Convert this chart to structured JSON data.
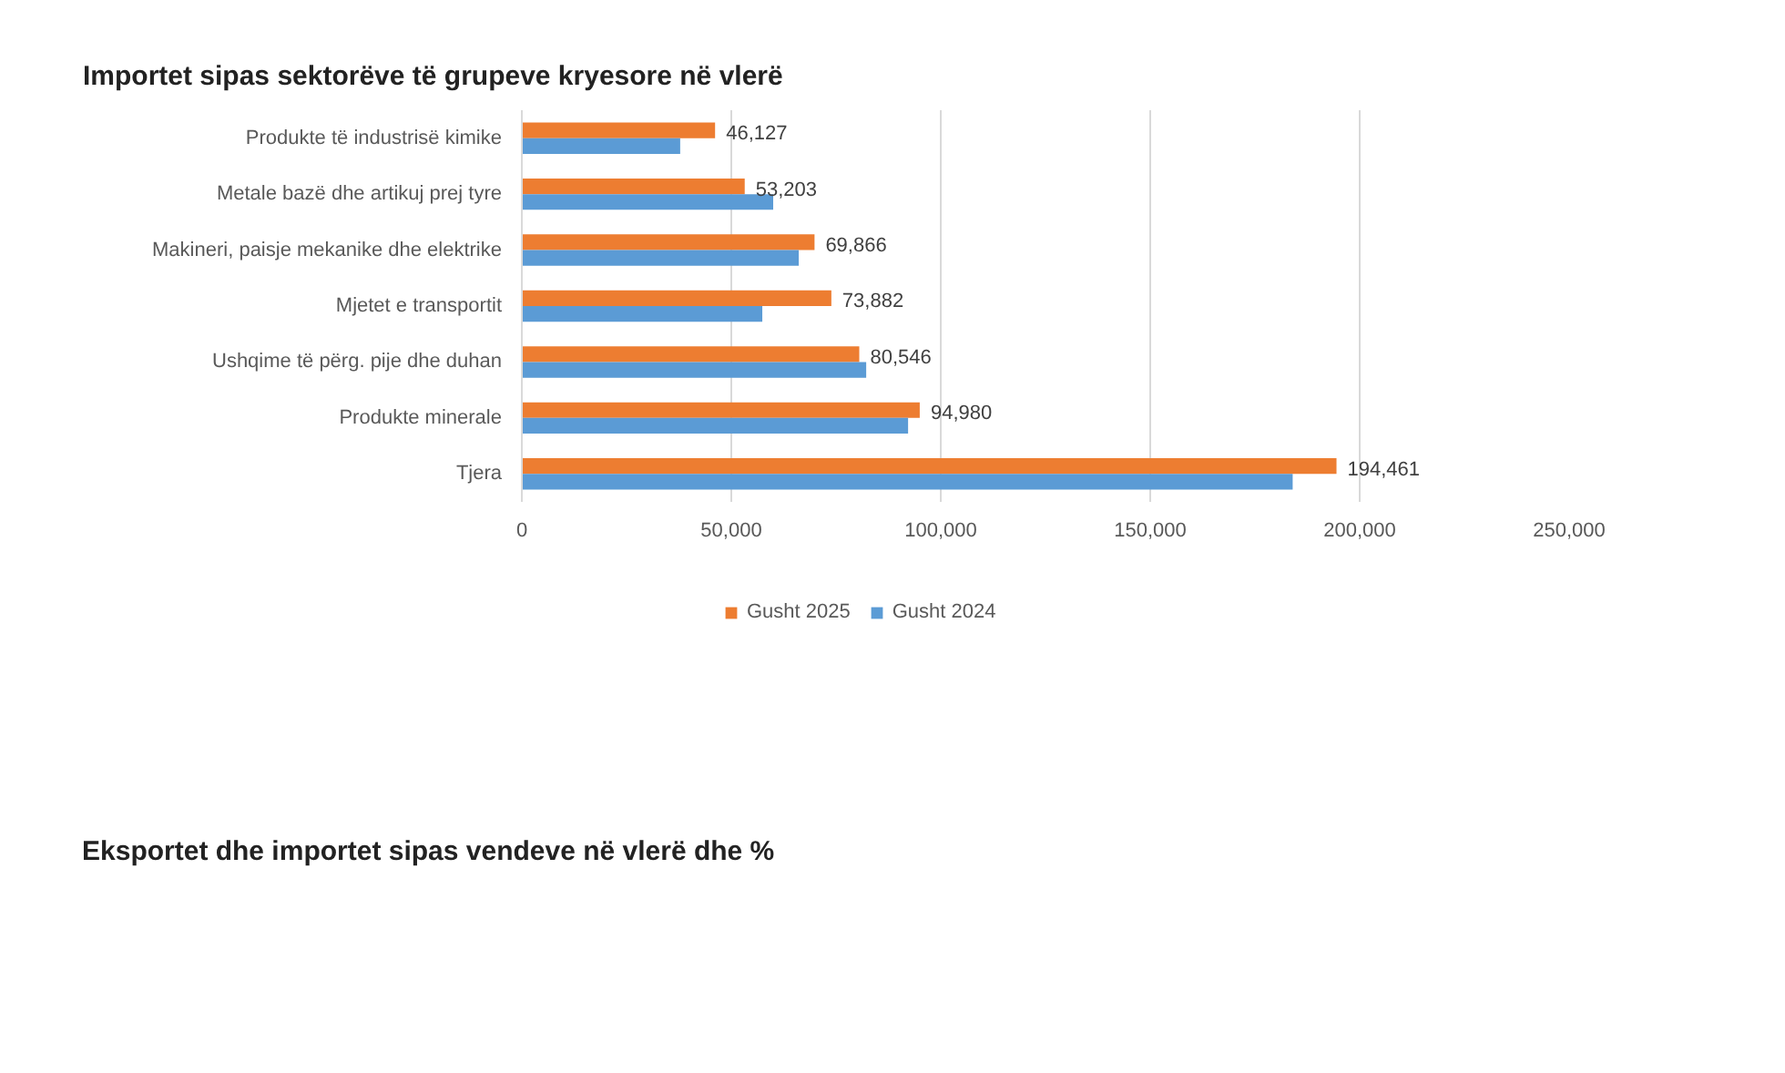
{
  "chart_data": {
    "type": "bar",
    "orientation": "horizontal",
    "title": "Importet sipas sektorëve të grupeve kryesore në vlerë",
    "categories": [
      "Produkte të industrisë kimike",
      "Metale bazë dhe artikuj prej tyre",
      "Makineri, paisje mekanike dhe elektrike",
      "Mjetet e transportit",
      "Ushqime të përg. pije dhe duhan",
      "Produkte minerale",
      "Tjera"
    ],
    "series": [
      {
        "name": "Gusht 2025",
        "color": "#ed7d31",
        "values": [
          46127,
          53203,
          69866,
          73882,
          80546,
          94980,
          194461
        ],
        "value_labels": [
          "46,127",
          "53,203",
          "69,866",
          "73,882",
          "80,546",
          "94,980",
          "194,461"
        ]
      },
      {
        "name": "Gusht 2024",
        "color": "#5b9bd5",
        "values": [
          37800,
          60000,
          66100,
          57400,
          82200,
          92200,
          184000
        ]
      }
    ],
    "xlim": [
      0,
      250000
    ],
    "xticks": [
      {
        "value": 0,
        "label": "0"
      },
      {
        "value": 50000,
        "label": "50,000"
      },
      {
        "value": 100000,
        "label": "100,000"
      },
      {
        "value": 150000,
        "label": "150,000"
      },
      {
        "value": 200000,
        "label": "200,000"
      },
      {
        "value": 250000,
        "label": "250,000"
      }
    ],
    "grid": "x",
    "legend": "bottom",
    "annotations": [
      "Eksportet dhe importet sipas vendeve në vlerë dhe %"
    ]
  }
}
